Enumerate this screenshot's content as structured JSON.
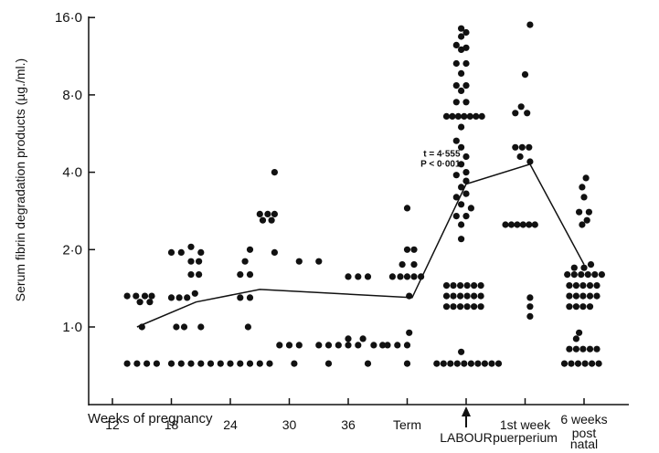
{
  "chart_data": {
    "type": "scatter",
    "ylabel": "Serum fibrin degradation products (µg./ml.)",
    "xlabel": "Weeks of pregnancy",
    "y_scale": "log",
    "ylim": [
      0.5,
      16
    ],
    "y_ticks": [
      {
        "value": 1.0,
        "label": "1·0"
      },
      {
        "value": 2.0,
        "label": "2·0"
      },
      {
        "value": 4.0,
        "label": "4·0"
      },
      {
        "value": 8.0,
        "label": "8·0"
      },
      {
        "value": 16.0,
        "label": "16·0"
      }
    ],
    "x_ticks": [
      {
        "pos": 12,
        "label": "12"
      },
      {
        "pos": 18,
        "label": "18"
      },
      {
        "pos": 24,
        "label": "24"
      },
      {
        "pos": 30,
        "label": "30"
      },
      {
        "pos": 36,
        "label": "36"
      },
      {
        "pos": 42,
        "label": "Term"
      },
      {
        "pos": 48,
        "label": "LABOUR"
      },
      {
        "pos": 54,
        "label": "1st week"
      },
      {
        "pos": 60,
        "label": "6 weeks"
      }
    ],
    "x_label_extra": [
      {
        "pos": 54,
        "label": "puerperium"
      },
      {
        "pos": 60,
        "label": "post"
      },
      {
        "pos": 60,
        "label": "natal"
      }
    ],
    "arrow_marker": {
      "pos": 48
    },
    "annotation": {
      "x": 47.4,
      "y": 4.6,
      "lines": [
        "t = 4·555",
        "P < 0·001"
      ]
    },
    "mean_line": {
      "x": [
        14.5,
        20.5,
        27,
        42.5,
        48,
        54.5,
        60
      ],
      "y": [
        1.0,
        1.25,
        1.4,
        1.3,
        3.6,
        4.3,
        1.75
      ]
    },
    "series": [
      {
        "values": [
          [
            13.5,
            0.72
          ],
          [
            14.5,
            0.72
          ],
          [
            15.5,
            0.72
          ],
          [
            16.5,
            0.72
          ],
          [
            13.5,
            1.32
          ],
          [
            14.4,
            1.32
          ],
          [
            15.3,
            1.32
          ],
          [
            16,
            1.32
          ],
          [
            14.8,
            1.25
          ],
          [
            15.8,
            1.25
          ],
          [
            15,
            1.0
          ]
        ]
      },
      {
        "values": [
          [
            18,
            0.72
          ],
          [
            19,
            0.72
          ],
          [
            20,
            0.72
          ],
          [
            21,
            0.72
          ],
          [
            22,
            0.72
          ],
          [
            23,
            0.72
          ],
          [
            18,
            1.3
          ],
          [
            18.8,
            1.3
          ],
          [
            19.6,
            1.3
          ],
          [
            20.4,
            1.35
          ],
          [
            18.5,
            1.0
          ],
          [
            19.3,
            1.0
          ],
          [
            21,
            1.0
          ],
          [
            18,
            1.95
          ],
          [
            19,
            1.95
          ],
          [
            20,
            2.05
          ],
          [
            21,
            1.95
          ],
          [
            20,
            1.8
          ],
          [
            20.8,
            1.8
          ],
          [
            20,
            1.6
          ],
          [
            20.8,
            1.6
          ]
        ]
      },
      {
        "values": [
          [
            24,
            0.72
          ],
          [
            25,
            0.72
          ],
          [
            26,
            0.72
          ],
          [
            27,
            0.72
          ],
          [
            28,
            0.72
          ],
          [
            25,
            1.3
          ],
          [
            26,
            1.3
          ],
          [
            25.8,
            1.0
          ],
          [
            25,
            1.6
          ],
          [
            26,
            1.6
          ],
          [
            25.5,
            1.8
          ],
          [
            26,
            2.0
          ],
          [
            27,
            2.75
          ],
          [
            27.8,
            2.75
          ],
          [
            28.5,
            2.75
          ],
          [
            27.3,
            2.6
          ],
          [
            28.2,
            2.6
          ],
          [
            28.5,
            4.0
          ],
          [
            28.5,
            1.95
          ]
        ]
      },
      {
        "values": [
          [
            29,
            0.85
          ],
          [
            30,
            0.85
          ],
          [
            30.5,
            0.72
          ],
          [
            31,
            0.85
          ],
          [
            31,
            1.8
          ],
          [
            33,
            0.85
          ],
          [
            34,
            0.85
          ],
          [
            35,
            0.85
          ],
          [
            36,
            0.85
          ],
          [
            37,
            0.85
          ],
          [
            33,
            1.8
          ],
          [
            34,
            0.72
          ],
          [
            36,
            1.57
          ],
          [
            37,
            1.57
          ],
          [
            38,
            1.57
          ],
          [
            36,
            0.9
          ],
          [
            37.5,
            0.9
          ],
          [
            38,
            0.72
          ],
          [
            38.6,
            0.85
          ],
          [
            39.5,
            0.85
          ]
        ]
      },
      {
        "values": [
          [
            40,
            0.85
          ],
          [
            41,
            0.85
          ],
          [
            42,
            0.72
          ],
          [
            42,
            0.85
          ],
          [
            42.2,
            0.95
          ],
          [
            40.5,
            1.57
          ],
          [
            41.3,
            1.57
          ],
          [
            42,
            1.57
          ],
          [
            42.7,
            1.57
          ],
          [
            43.4,
            1.57
          ],
          [
            41.5,
            1.75
          ],
          [
            42.7,
            1.75
          ],
          [
            42,
            2.0
          ],
          [
            42.7,
            2.0
          ],
          [
            42,
            2.9
          ],
          [
            42.2,
            1.32
          ]
        ]
      },
      {
        "values": [
          [
            45,
            0.72
          ],
          [
            45.7,
            0.72
          ],
          [
            46.4,
            0.72
          ],
          [
            47.1,
            0.72
          ],
          [
            47.8,
            0.72
          ],
          [
            48.5,
            0.72
          ],
          [
            49.2,
            0.72
          ],
          [
            49.9,
            0.72
          ],
          [
            50.6,
            0.72
          ],
          [
            51.3,
            0.72
          ],
          [
            47.5,
            0.8
          ],
          [
            46,
            1.2
          ],
          [
            46.7,
            1.2
          ],
          [
            47.4,
            1.2
          ],
          [
            48.1,
            1.2
          ],
          [
            48.8,
            1.2
          ],
          [
            49.5,
            1.2
          ],
          [
            46,
            1.32
          ],
          [
            46.7,
            1.32
          ],
          [
            47.4,
            1.32
          ],
          [
            48.1,
            1.32
          ],
          [
            48.8,
            1.32
          ],
          [
            49.5,
            1.32
          ],
          [
            46,
            1.45
          ],
          [
            46.7,
            1.45
          ],
          [
            47.4,
            1.45
          ],
          [
            48.1,
            1.45
          ],
          [
            48.8,
            1.45
          ],
          [
            49.5,
            1.45
          ],
          [
            47.5,
            2.2
          ],
          [
            47.5,
            2.5
          ],
          [
            48,
            2.7
          ],
          [
            47,
            2.7
          ],
          [
            48.5,
            2.9
          ],
          [
            47.5,
            3.0
          ],
          [
            47,
            3.2
          ],
          [
            48,
            3.3
          ],
          [
            47.5,
            3.5
          ],
          [
            48,
            3.7
          ],
          [
            47,
            3.9
          ],
          [
            48,
            4.0
          ],
          [
            47.5,
            4.3
          ],
          [
            48,
            4.6
          ],
          [
            47.5,
            5.0
          ],
          [
            47,
            5.3
          ],
          [
            46,
            6.6
          ],
          [
            46.6,
            6.6
          ],
          [
            47.2,
            6.6
          ],
          [
            47.8,
            6.6
          ],
          [
            48.4,
            6.6
          ],
          [
            49,
            6.6
          ],
          [
            49.6,
            6.6
          ],
          [
            47.5,
            6.0
          ],
          [
            47,
            7.5
          ],
          [
            48,
            7.5
          ],
          [
            47.5,
            8.3
          ],
          [
            47,
            8.7
          ],
          [
            48,
            8.7
          ],
          [
            47.5,
            9.7
          ],
          [
            47,
            10.6
          ],
          [
            48,
            10.6
          ],
          [
            47.5,
            12.0
          ],
          [
            48,
            12.2
          ],
          [
            47,
            12.5
          ],
          [
            47.5,
            13.5
          ],
          [
            48,
            14.0
          ],
          [
            47.5,
            14.5
          ]
        ]
      },
      {
        "values": [
          [
            52,
            2.5
          ],
          [
            52.6,
            2.5
          ],
          [
            53.2,
            2.5
          ],
          [
            53.8,
            2.5
          ],
          [
            54.4,
            2.5
          ],
          [
            55,
            2.5
          ],
          [
            54.5,
            1.1
          ],
          [
            54.5,
            1.2
          ],
          [
            54.5,
            1.3
          ],
          [
            53,
            5.0
          ],
          [
            53.7,
            5.0
          ],
          [
            54.4,
            5.0
          ],
          [
            53.5,
            4.6
          ],
          [
            54.5,
            4.4
          ],
          [
            53,
            6.8
          ],
          [
            53.6,
            7.2
          ],
          [
            54.2,
            6.8
          ],
          [
            54,
            9.6
          ],
          [
            54.5,
            15.0
          ]
        ]
      },
      {
        "values": [
          [
            58,
            0.72
          ],
          [
            58.7,
            0.72
          ],
          [
            59.4,
            0.72
          ],
          [
            60.1,
            0.72
          ],
          [
            60.8,
            0.72
          ],
          [
            61.5,
            0.72
          ],
          [
            58.5,
            0.82
          ],
          [
            59.2,
            0.82
          ],
          [
            59.9,
            0.82
          ],
          [
            60.6,
            0.82
          ],
          [
            61.3,
            0.82
          ],
          [
            59.5,
            0.95
          ],
          [
            59.2,
            0.9
          ],
          [
            58.5,
            1.2
          ],
          [
            59.2,
            1.2
          ],
          [
            59.9,
            1.2
          ],
          [
            60.6,
            1.2
          ],
          [
            58.5,
            1.32
          ],
          [
            59.2,
            1.32
          ],
          [
            59.9,
            1.32
          ],
          [
            60.6,
            1.32
          ],
          [
            61.3,
            1.32
          ],
          [
            58.5,
            1.45
          ],
          [
            59.2,
            1.45
          ],
          [
            59.9,
            1.45
          ],
          [
            60.6,
            1.45
          ],
          [
            61.3,
            1.45
          ],
          [
            58.3,
            1.6
          ],
          [
            59,
            1.6
          ],
          [
            59.7,
            1.6
          ],
          [
            60.4,
            1.6
          ],
          [
            61.1,
            1.6
          ],
          [
            61.8,
            1.6
          ],
          [
            59,
            1.7
          ],
          [
            60,
            1.7
          ],
          [
            60.7,
            1.75
          ],
          [
            59.8,
            2.5
          ],
          [
            60.3,
            2.6
          ],
          [
            59.5,
            2.8
          ],
          [
            60.5,
            2.8
          ],
          [
            60,
            3.2
          ],
          [
            59.8,
            3.5
          ],
          [
            60.2,
            3.8
          ]
        ]
      }
    ]
  }
}
